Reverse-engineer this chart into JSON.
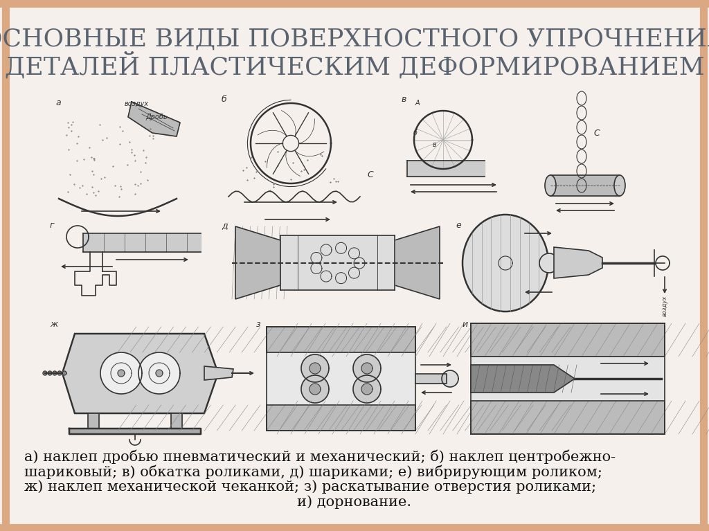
{
  "background_color": "#f5f0eb",
  "title_line1": "ОСНОВНЫЕ ВИДЫ ПОВЕРХНОСТНОГО УПРОЧНЕНИЯ",
  "title_line2": "ДЕТАЛЕЙ ПЛАСТИЧЕСКИМ ДЕФОРМИРОВАНИЕМ",
  "title_color": "#5a6370",
  "title_fontsize": 26,
  "caption_line1": "а) наклеп дробью пневматический и механический; б) наклеп центробежно-",
  "caption_line2": "шариковый; в) обкатка роликами, д) шариками; е) вибрирующим роликом;",
  "caption_line3": "ж) наклеп механической чеканкой; з) раскатывание отверстия роликами;",
  "caption_line4": "и) дорнование.",
  "caption_fontsize": 15,
  "caption_color": "#111111",
  "lc": "#333333",
  "fig_width": 10.24,
  "fig_height": 7.67,
  "border_color": "#dca882",
  "border_lw": 8
}
